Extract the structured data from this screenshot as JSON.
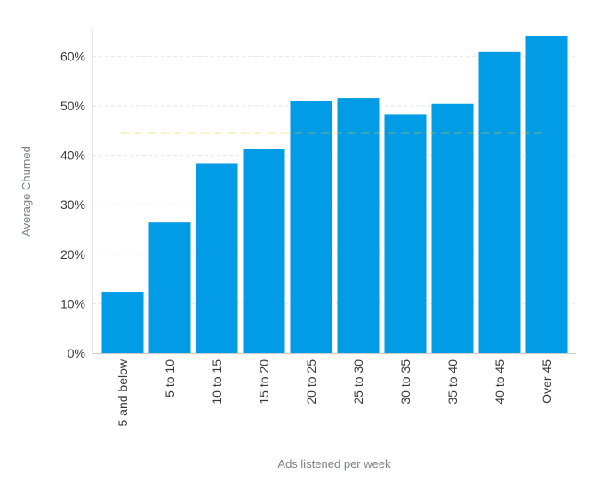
{
  "chart_data": {
    "type": "bar",
    "title": "",
    "xlabel": "Ads listened per week",
    "ylabel": "Average Churned",
    "categories": [
      "5 and below",
      "5 to 10",
      "10 to 15",
      "15 to 20",
      "20 to 25",
      "25 to 30",
      "30 to 35",
      "35 to 40",
      "40 to 45",
      "Over 45"
    ],
    "values": [
      12.4,
      26.4,
      38.4,
      41.2,
      50.9,
      51.6,
      48.3,
      50.4,
      61.0,
      64.2
    ],
    "yticks": [
      "0%",
      "10%",
      "20%",
      "30%",
      "40%",
      "50%",
      "60%"
    ],
    "ylim": [
      0,
      66
    ],
    "reference_line": {
      "value": 44.5,
      "style": "dashed"
    },
    "grid": true,
    "legend": "none"
  },
  "colors": {
    "bar": "#029be6",
    "reference_line": "#e8d21a",
    "grid": "#e6e6e6",
    "axis": "#cccccc"
  }
}
